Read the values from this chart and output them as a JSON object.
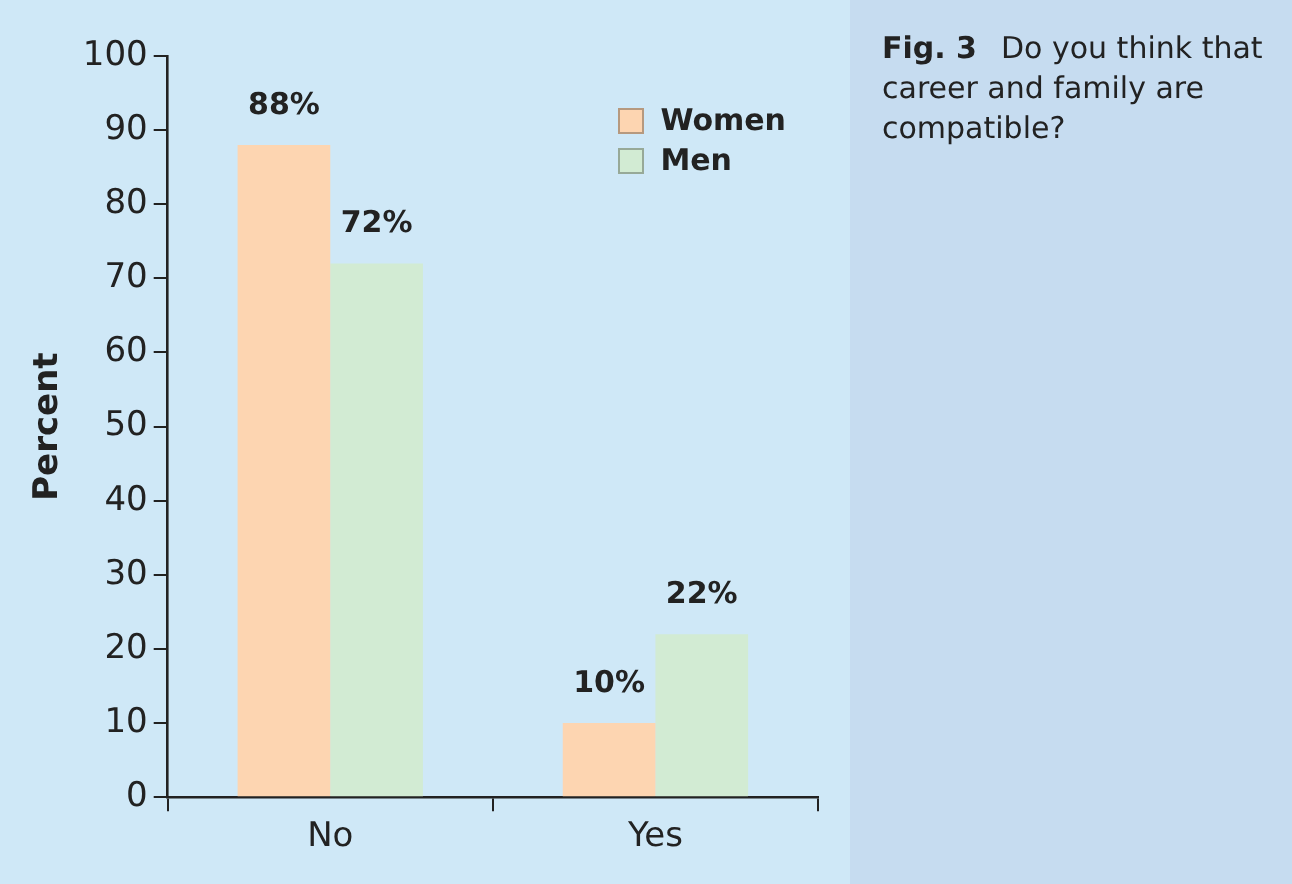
{
  "chart_data": {
    "type": "bar",
    "title": "Fig. 3",
    "subtitle": "Do you think that career and family are compatible?",
    "ylabel": "Percent",
    "categories": [
      "No",
      "Yes"
    ],
    "series": [
      {
        "name": "Women",
        "color": "#fdd5b1",
        "values": [
          88,
          10
        ],
        "value_labels": [
          "88%",
          "10%"
        ]
      },
      {
        "name": "Men",
        "color": "#d2ebd3",
        "values": [
          72,
          22
        ],
        "value_labels": [
          "72%",
          "22%"
        ]
      }
    ],
    "ylim": [
      0,
      100
    ],
    "yticks": [
      0,
      10,
      20,
      30,
      40,
      50,
      60,
      70,
      80,
      90,
      100
    ],
    "grid": false,
    "legend": "top right"
  }
}
